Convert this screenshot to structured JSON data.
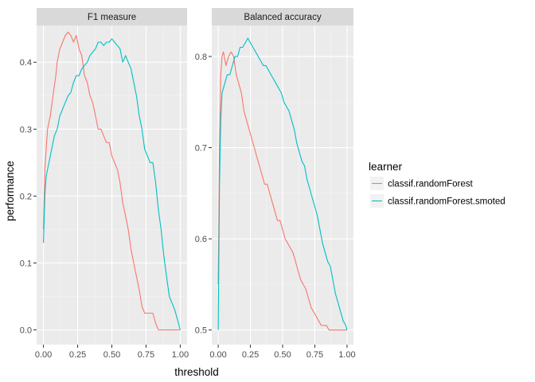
{
  "chart_data": {
    "type": "line",
    "xlabel": "threshold",
    "ylabel": "performance",
    "legend": {
      "title": "learner",
      "placement": "right",
      "entries": [
        {
          "name": "classif.randomForest",
          "color": "#F8766D"
        },
        {
          "name": "classif.randomForest.smoted",
          "color": "#00BFC4"
        }
      ]
    },
    "panels": [
      {
        "strip": "F1 measure",
        "xlim": [
          -0.05,
          1.05
        ],
        "ylim": [
          -0.022,
          0.455
        ],
        "x_ticks": [
          0.0,
          0.25,
          0.5,
          0.75,
          1.0
        ],
        "x_tick_labels": [
          "0.00",
          "0.25",
          "0.50",
          "0.75",
          "1.00"
        ],
        "y_ticks": [
          0.0,
          0.1,
          0.2,
          0.3,
          0.4
        ],
        "y_tick_labels": [
          "0.0",
          "0.1",
          "0.2",
          "0.3",
          "0.4"
        ],
        "series": [
          {
            "name": "classif.randomForest",
            "color": "#F8766D",
            "x": [
              0.0,
              0.01,
              0.02,
              0.03,
              0.05,
              0.07,
              0.09,
              0.1,
              0.12,
              0.14,
              0.16,
              0.18,
              0.2,
              0.22,
              0.24,
              0.26,
              0.28,
              0.3,
              0.32,
              0.34,
              0.36,
              0.38,
              0.4,
              0.42,
              0.44,
              0.46,
              0.48,
              0.5,
              0.52,
              0.54,
              0.56,
              0.58,
              0.6,
              0.62,
              0.64,
              0.66,
              0.68,
              0.7,
              0.72,
              0.74,
              0.76,
              0.78,
              0.8,
              0.82,
              0.84,
              0.9,
              1.0
            ],
            "y": [
              0.15,
              0.24,
              0.27,
              0.3,
              0.32,
              0.35,
              0.38,
              0.4,
              0.42,
              0.43,
              0.44,
              0.445,
              0.44,
              0.43,
              0.44,
              0.42,
              0.41,
              0.38,
              0.37,
              0.35,
              0.34,
              0.32,
              0.3,
              0.3,
              0.29,
              0.28,
              0.28,
              0.26,
              0.25,
              0.24,
              0.22,
              0.19,
              0.17,
              0.15,
              0.12,
              0.1,
              0.08,
              0.06,
              0.035,
              0.025,
              0.025,
              0.025,
              0.025,
              0.01,
              0.0,
              0.0,
              0.0
            ]
          },
          {
            "name": "classif.randomForest.smoted",
            "color": "#00BFC4",
            "x": [
              0.0,
              0.01,
              0.02,
              0.04,
              0.06,
              0.08,
              0.1,
              0.12,
              0.14,
              0.16,
              0.18,
              0.2,
              0.22,
              0.24,
              0.26,
              0.28,
              0.3,
              0.32,
              0.34,
              0.36,
              0.38,
              0.4,
              0.42,
              0.44,
              0.46,
              0.48,
              0.5,
              0.52,
              0.54,
              0.56,
              0.58,
              0.6,
              0.62,
              0.64,
              0.66,
              0.68,
              0.7,
              0.72,
              0.74,
              0.76,
              0.78,
              0.8,
              0.82,
              0.84,
              0.86,
              0.88,
              0.9,
              0.92,
              0.94,
              0.96,
              0.98,
              1.0
            ],
            "y": [
              0.13,
              0.2,
              0.23,
              0.25,
              0.27,
              0.29,
              0.3,
              0.32,
              0.33,
              0.34,
              0.35,
              0.355,
              0.37,
              0.38,
              0.38,
              0.39,
              0.395,
              0.4,
              0.41,
              0.415,
              0.42,
              0.43,
              0.43,
              0.425,
              0.43,
              0.43,
              0.435,
              0.43,
              0.425,
              0.42,
              0.4,
              0.41,
              0.4,
              0.39,
              0.37,
              0.35,
              0.32,
              0.3,
              0.27,
              0.26,
              0.25,
              0.25,
              0.22,
              0.18,
              0.15,
              0.11,
              0.08,
              0.05,
              0.04,
              0.03,
              0.015,
              0.0
            ]
          }
        ]
      },
      {
        "strip": "Balanced accuracy",
        "xlim": [
          -0.05,
          1.05
        ],
        "ylim": [
          0.484,
          0.834
        ],
        "x_ticks": [
          0.0,
          0.25,
          0.5,
          0.75,
          1.0
        ],
        "x_tick_labels": [
          "0.00",
          "0.25",
          "0.50",
          "0.75",
          "1.00"
        ],
        "y_ticks": [
          0.5,
          0.6,
          0.7,
          0.8
        ],
        "y_tick_labels": [
          "0.5",
          "0.6",
          "0.7",
          "0.8"
        ],
        "series": [
          {
            "name": "classif.randomForest",
            "color": "#F8766D",
            "x": [
              0.0,
              0.01,
              0.02,
              0.03,
              0.04,
              0.06,
              0.08,
              0.1,
              0.12,
              0.14,
              0.16,
              0.18,
              0.2,
              0.22,
              0.24,
              0.26,
              0.28,
              0.3,
              0.32,
              0.34,
              0.36,
              0.38,
              0.4,
              0.42,
              0.44,
              0.46,
              0.48,
              0.5,
              0.52,
              0.54,
              0.56,
              0.58,
              0.6,
              0.62,
              0.64,
              0.66,
              0.68,
              0.7,
              0.72,
              0.74,
              0.76,
              0.78,
              0.8,
              0.82,
              0.84,
              0.86,
              0.9,
              1.0
            ],
            "y": [
              0.55,
              0.7,
              0.78,
              0.8,
              0.805,
              0.79,
              0.8,
              0.805,
              0.8,
              0.78,
              0.77,
              0.76,
              0.74,
              0.73,
              0.72,
              0.71,
              0.7,
              0.69,
              0.68,
              0.67,
              0.66,
              0.66,
              0.65,
              0.64,
              0.63,
              0.62,
              0.62,
              0.61,
              0.6,
              0.595,
              0.59,
              0.585,
              0.575,
              0.565,
              0.555,
              0.55,
              0.545,
              0.535,
              0.525,
              0.52,
              0.515,
              0.51,
              0.505,
              0.505,
              0.505,
              0.5,
              0.5,
              0.5
            ]
          },
          {
            "name": "classif.randomForest.smoted",
            "color": "#00BFC4",
            "x": [
              0.0,
              0.01,
              0.02,
              0.03,
              0.05,
              0.07,
              0.09,
              0.11,
              0.13,
              0.15,
              0.17,
              0.19,
              0.21,
              0.23,
              0.25,
              0.27,
              0.29,
              0.31,
              0.33,
              0.35,
              0.37,
              0.39,
              0.41,
              0.43,
              0.45,
              0.47,
              0.49,
              0.51,
              0.53,
              0.55,
              0.57,
              0.59,
              0.61,
              0.63,
              0.65,
              0.67,
              0.69,
              0.71,
              0.73,
              0.75,
              0.77,
              0.79,
              0.81,
              0.83,
              0.85,
              0.87,
              0.89,
              0.91,
              0.93,
              0.95,
              0.97,
              0.99,
              1.0
            ],
            "y": [
              0.5,
              0.66,
              0.73,
              0.76,
              0.77,
              0.78,
              0.78,
              0.79,
              0.8,
              0.8,
              0.81,
              0.81,
              0.815,
              0.82,
              0.815,
              0.81,
              0.805,
              0.8,
              0.795,
              0.79,
              0.79,
              0.785,
              0.78,
              0.775,
              0.77,
              0.765,
              0.76,
              0.75,
              0.745,
              0.74,
              0.73,
              0.72,
              0.705,
              0.695,
              0.685,
              0.68,
              0.665,
              0.655,
              0.645,
              0.635,
              0.625,
              0.61,
              0.595,
              0.585,
              0.575,
              0.57,
              0.555,
              0.54,
              0.53,
              0.52,
              0.51,
              0.505,
              0.5
            ]
          }
        ]
      }
    ]
  }
}
